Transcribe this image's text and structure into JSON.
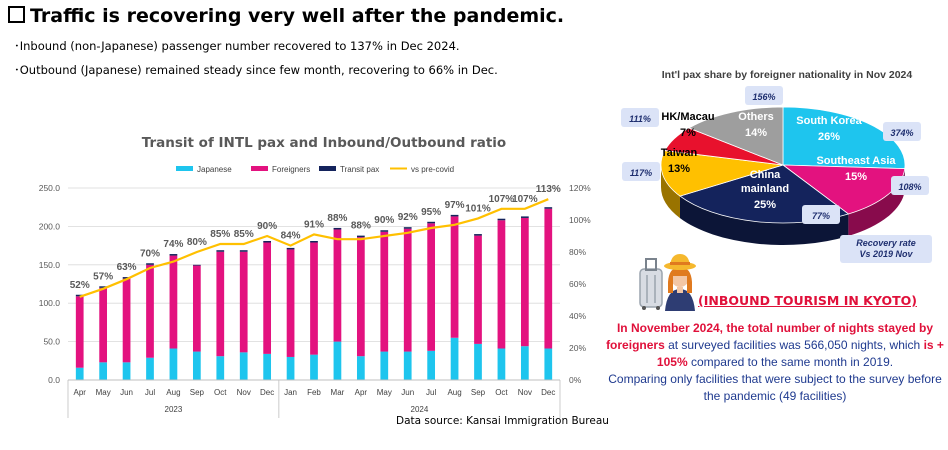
{
  "page": {
    "title": "Traffic is recovering very well after the pandemic.",
    "bullets": [
      "･Inbound (non-Japanese) passenger number recovered to 137% in Dec 2024.",
      "･Outbound (Japanese) remained steady since few month, recovering to 66% in Dec."
    ],
    "source": "Data source: Kansai Immigration Bureau"
  },
  "colors": {
    "japanese": "#1ec5ee",
    "foreigners": "#e3127f",
    "transit": "#14235c",
    "vs_pre_covid": "#ffc000",
    "kyoto_title": "#e0103a",
    "kyoto_text": "#1f3a8f"
  },
  "chart_data": [
    {
      "type": "bar",
      "title": "Transit of INTL pax and Inbound/Outbound ratio",
      "categories": [
        "Apr",
        "May",
        "Jun",
        "Jul",
        "Aug",
        "Sep",
        "Oct",
        "Nov",
        "Dec",
        "Jan",
        "Feb",
        "Mar",
        "Apr",
        "May",
        "Jun",
        "Jul",
        "Aug",
        "Sep",
        "Oct",
        "Nov",
        "Dec"
      ],
      "year_groups": [
        {
          "label": "2023",
          "count": 9
        },
        {
          "label": "2024",
          "count": 12
        }
      ],
      "stacked": true,
      "series": [
        {
          "name": "Japanese",
          "axis": "left",
          "values": [
            16,
            23,
            23,
            29,
            41,
            37,
            31,
            36,
            34,
            30,
            33,
            50,
            31,
            37,
            37,
            38,
            55,
            47,
            41,
            44,
            41
          ]
        },
        {
          "name": "Foreigners",
          "axis": "left",
          "values": [
            93,
            97,
            109,
            121,
            121,
            112,
            136,
            131,
            145,
            140,
            146,
            146,
            155,
            156,
            160,
            166,
            158,
            141,
            167,
            167,
            182
          ]
        },
        {
          "name": "Transit pax",
          "axis": "left",
          "values": [
            2,
            2,
            2,
            2,
            2,
            1,
            2,
            2,
            2,
            2,
            2,
            2,
            2,
            2,
            2,
            2,
            2,
            2,
            2,
            2,
            2
          ]
        },
        {
          "name": "vs pre-covid",
          "type": "line",
          "axis": "right",
          "values": [
            52,
            57,
            63,
            70,
            74,
            80,
            85,
            85,
            90,
            84,
            91,
            88,
            88,
            90,
            92,
            95,
            97,
            101,
            107,
            107,
            113
          ]
        }
      ],
      "data_labels": [
        "52%",
        "57%",
        "63%",
        "70%",
        "74%",
        "80%",
        "85%",
        "85%",
        "90%",
        "84%",
        "91%",
        "88%",
        "88%",
        "90%",
        "92%",
        "95%",
        "97%",
        "101%",
        "107%",
        "107%",
        "113%"
      ],
      "y_left": {
        "min": 0,
        "max": 250,
        "ticks": [
          "0.0",
          "50.0",
          "100.0",
          "150.0",
          "200.0",
          "250.0"
        ]
      },
      "y_right": {
        "min": 0,
        "max": 120,
        "ticks": [
          "0%",
          "20%",
          "40%",
          "60%",
          "80%",
          "100%",
          "120%"
        ]
      },
      "legend_position": "top",
      "grid": true
    },
    {
      "type": "pie",
      "title": "Int'l pax share by foreigner nationality in Nov 2024",
      "slices": [
        {
          "label": "South Korea",
          "value": 26,
          "value_label": "26%",
          "recovery": "374%",
          "color": "#1ec5ee"
        },
        {
          "label": "Southeast Asia",
          "value": 15,
          "value_label": "15%",
          "recovery": "108%",
          "color": "#e3127f"
        },
        {
          "label": "China mainland",
          "value": 25,
          "value_label": "25%",
          "recovery": "77%",
          "color": "#14235c"
        },
        {
          "label": "Taiwan",
          "value": 13,
          "value_label": "13%",
          "recovery": "117%",
          "color": "#ffc000"
        },
        {
          "label": "HK/Macau",
          "value": 7,
          "value_label": "7%",
          "recovery": "111%",
          "color": "#e8112d"
        },
        {
          "label": "Others",
          "value": 14,
          "value_label": "14%",
          "recovery": "156%",
          "color": "#9e9e9e"
        }
      ],
      "recovery_note": [
        "Recovery rate",
        "Vs 2019 Nov"
      ]
    }
  ],
  "kyoto": {
    "title": "(INBOUND TOURISM IN KYOTO)",
    "p1": "In November 2024, the total number of nights stayed by foreigners",
    "p2": " at surveyed facilities was 566,050 nights, which ",
    "p3": "is + 105%",
    "p4": " compared to the same month in 2019.",
    "p5": "Comparing only facilities that were subject to the survey before the pandemic (49 facilities)"
  }
}
